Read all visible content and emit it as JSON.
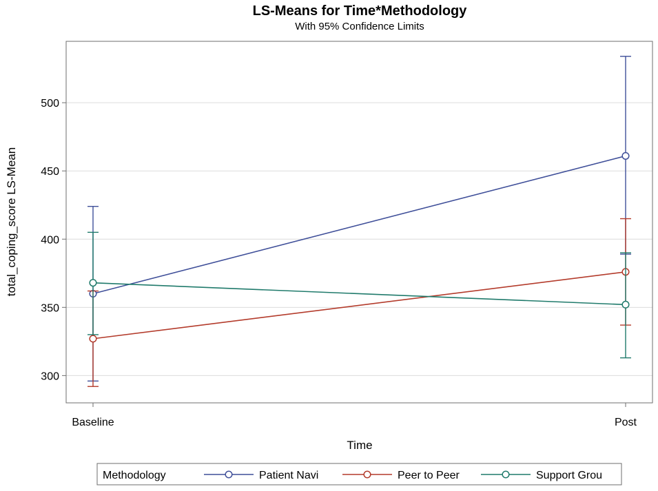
{
  "chart_data": {
    "type": "line",
    "title": "LS-Means for Time*Methodology",
    "subtitle": "With 95% Confidence Limits",
    "xlabel": "Time",
    "ylabel": "total_coping_score LS-Mean",
    "categories": [
      "Baseline",
      "Post"
    ],
    "ylim": [
      280,
      545
    ],
    "yticks": [
      300,
      350,
      400,
      450,
      500
    ],
    "grid": "horizontal",
    "legend": {
      "title": "Methodology",
      "placement": "bottom"
    },
    "series": [
      {
        "name": "Patient Navi",
        "color": "#3f4f99",
        "values": [
          360,
          461
        ],
        "lower": [
          296,
          389
        ],
        "upper": [
          424,
          534
        ]
      },
      {
        "name": "Peer to Peer",
        "color": "#b33a2a",
        "values": [
          327,
          376
        ],
        "lower": [
          292,
          337
        ],
        "upper": [
          362,
          415
        ]
      },
      {
        "name": "Support Grou",
        "color": "#1f7a6b",
        "values": [
          368,
          352
        ],
        "lower": [
          330,
          313
        ],
        "upper": [
          405,
          390
        ]
      }
    ]
  }
}
